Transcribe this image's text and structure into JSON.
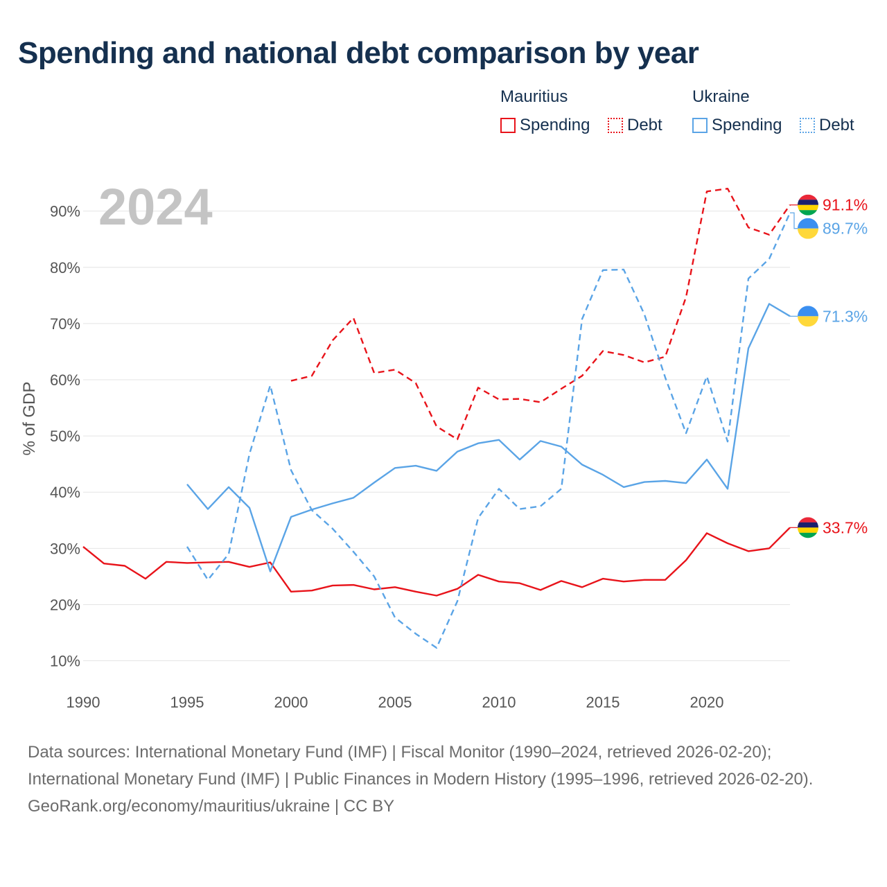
{
  "title": "Spending and national debt comparison by year",
  "legend": {
    "groups": [
      {
        "country": "Mauritius",
        "items": [
          {
            "label": "Spending",
            "style": "solid",
            "color": "#e8131a"
          },
          {
            "label": "Debt",
            "style": "dotted",
            "color": "#e8131a"
          }
        ]
      },
      {
        "country": "Ukraine",
        "items": [
          {
            "label": "Spending",
            "style": "solid",
            "color": "#5aa4e6"
          },
          {
            "label": "Debt",
            "style": "dotted",
            "color": "#5aa4e6"
          }
        ]
      }
    ]
  },
  "chart_data": {
    "type": "line",
    "title": "Spending and national debt comparison by year",
    "year_label": "2024",
    "ylabel": "% of GDP",
    "xlabel": "",
    "xlim": [
      1990,
      2024
    ],
    "ylim": [
      6,
      96
    ],
    "x_ticks": [
      1990,
      1995,
      2000,
      2005,
      2010,
      2015,
      2020
    ],
    "y_ticks": [
      10,
      20,
      30,
      40,
      50,
      60,
      70,
      80,
      90
    ],
    "y_tick_labels": [
      "10%",
      "20%",
      "30%",
      "40%",
      "50%",
      "60%",
      "70%",
      "80%",
      "90%"
    ],
    "grid": "horizontal",
    "series": [
      {
        "name": "Mauritius Spending",
        "country": "Mauritius",
        "metric": "Spending",
        "color": "#e8131a",
        "dash": "solid",
        "start_year": 1990,
        "values": [
          30.3,
          27.3,
          26.9,
          24.6,
          27.6,
          27.4,
          27.5,
          27.6,
          26.7,
          27.5,
          22.3,
          22.5,
          23.4,
          23.5,
          22.7,
          23.1,
          22.3,
          21.6,
          22.8,
          25.3,
          24.1,
          23.8,
          22.6,
          24.2,
          23.1,
          24.6,
          24.1,
          24.4,
          24.4,
          27.9,
          32.7,
          30.9,
          29.5,
          30.0,
          33.7
        ],
        "end_label": "33.7%",
        "flag": "mauritius"
      },
      {
        "name": "Mauritius Debt",
        "country": "Mauritius",
        "metric": "Debt",
        "color": "#e8131a",
        "dash": "dashed",
        "start_year": 2000,
        "values": [
          59.8,
          60.7,
          67.0,
          71.0,
          61.2,
          61.8,
          59.4,
          51.7,
          49.4,
          58.6,
          56.5,
          56.6,
          56.0,
          58.4,
          60.7,
          65.1,
          64.4,
          63.1,
          64.1,
          74.7,
          93.5,
          94.0,
          87.1,
          85.8,
          91.1
        ],
        "end_label": "91.1%",
        "flag": "mauritius"
      },
      {
        "name": "Ukraine Spending",
        "country": "Ukraine",
        "metric": "Spending",
        "color": "#5aa4e6",
        "dash": "solid",
        "start_year": 1995,
        "values": [
          41.4,
          37.0,
          40.9,
          37.2,
          25.9,
          35.6,
          36.9,
          38.0,
          39.0,
          41.7,
          44.3,
          44.7,
          43.8,
          47.2,
          48.7,
          49.3,
          45.8,
          49.1,
          48.1,
          44.9,
          43.1,
          40.9,
          41.8,
          42.0,
          41.6,
          45.8,
          40.6,
          65.6,
          73.5,
          71.3
        ],
        "end_label": "71.3%",
        "flag": "ukraine"
      },
      {
        "name": "Ukraine Debt",
        "country": "Ukraine",
        "metric": "Debt",
        "color": "#5aa4e6",
        "dash": "dashed",
        "start_year": 1995,
        "values": [
          30.3,
          24.4,
          29.0,
          46.8,
          59.0,
          43.9,
          36.8,
          33.5,
          29.4,
          25.0,
          17.7,
          14.8,
          12.3,
          20.6,
          35.4,
          40.6,
          37.0,
          37.5,
          40.6,
          70.8,
          79.5,
          79.6,
          71.6,
          60.4,
          50.5,
          60.6,
          49.0,
          78.0,
          81.5,
          89.7
        ],
        "end_label": "89.7%",
        "flag": "ukraine"
      }
    ]
  },
  "sources": {
    "line1": "Data sources: International Monetary Fund (IMF) | Fiscal Monitor (1990–2024, retrieved 2026-02-20);",
    "line2": "International Monetary Fund (IMF) | Public Finances in Modern History (1995–1996, retrieved 2026-02-20).",
    "line3": "GeoRank.org/economy/mauritius/ukraine | CC BY"
  }
}
